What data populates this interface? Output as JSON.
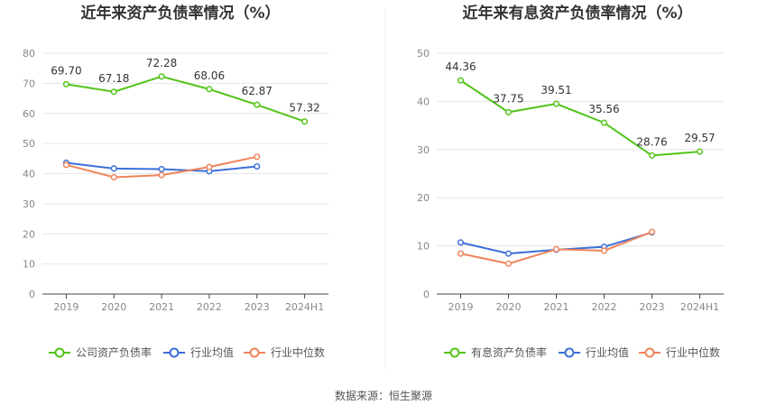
{
  "colors": {
    "company": "#52c41a",
    "industry_avg": "#3b6fd8",
    "industry_median": "#ef845a",
    "grid": "#e6e6e6",
    "axis": "#444444",
    "divider": "#eeeeee"
  },
  "source_text": "数据来源：恒生聚源",
  "chart_data": [
    {
      "type": "line",
      "title": "近年来资产负债率情况（%）",
      "categories": [
        "2019",
        "2020",
        "2021",
        "2022",
        "2023",
        "2024H1"
      ],
      "yticks": [
        "0",
        "10",
        "20",
        "30",
        "40",
        "50",
        "60",
        "70",
        "80"
      ],
      "ylim": [
        0,
        80
      ],
      "grid": true,
      "legend_position": "bottom",
      "series": [
        {
          "name": "公司资产负债率",
          "color": "#52c41a",
          "values": [
            69.7,
            67.18,
            72.28,
            68.06,
            62.87,
            57.32
          ],
          "labels": [
            "69.70",
            "67.18",
            "72.28",
            "68.06",
            "62.87",
            "57.32"
          ]
        },
        {
          "name": "行业均值",
          "color": "#3b6fd8",
          "values": [
            43.6,
            41.7,
            41.5,
            40.8,
            42.4,
            null
          ]
        },
        {
          "name": "行业中位数",
          "color": "#ef845a",
          "values": [
            42.9,
            38.8,
            39.5,
            42.2,
            45.6,
            null
          ]
        }
      ]
    },
    {
      "type": "line",
      "title": "近年来有息资产负债率情况（%）",
      "categories": [
        "2019",
        "2020",
        "2021",
        "2022",
        "2023",
        "2024H1"
      ],
      "yticks": [
        "0",
        "10",
        "20",
        "30",
        "40",
        "50"
      ],
      "ylim": [
        0,
        50
      ],
      "grid": true,
      "legend_position": "bottom",
      "series": [
        {
          "name": "有息资产负债率",
          "color": "#52c41a",
          "values": [
            44.36,
            37.75,
            39.51,
            35.56,
            28.76,
            29.57
          ],
          "labels": [
            "44.36",
            "37.75",
            "39.51",
            "35.56",
            "28.76",
            "29.57"
          ]
        },
        {
          "name": "行业均值",
          "color": "#3b6fd8",
          "values": [
            10.7,
            8.4,
            9.2,
            9.8,
            12.8,
            null
          ]
        },
        {
          "name": "行业中位数",
          "color": "#ef845a",
          "values": [
            8.4,
            6.3,
            9.3,
            9.0,
            12.9,
            null
          ]
        }
      ]
    }
  ]
}
